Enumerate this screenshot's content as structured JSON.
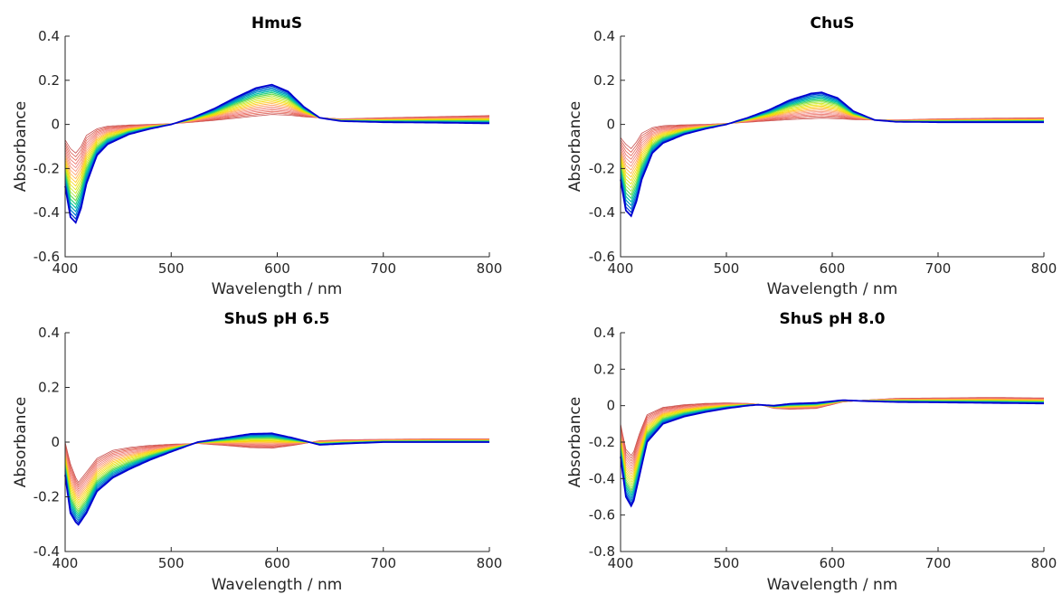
{
  "chart_data": [
    {
      "type": "line",
      "title": "HmuS",
      "xlabel": "Wavelength / nm",
      "ylabel": "Absorbance",
      "xlim": [
        400,
        800
      ],
      "ylim": [
        -0.6,
        0.4
      ],
      "xticks": [
        "400",
        "500",
        "600",
        "700",
        "800"
      ],
      "yticks": [
        "-0.6",
        "-0.4",
        "-0.2",
        "0",
        "0.2",
        "0.4"
      ],
      "ytick_values": [
        -0.6,
        -0.4,
        -0.2,
        0,
        0.2,
        0.4
      ],
      "grid": false,
      "first_spectrum": {
        "x": [
          400,
          405,
          410,
          415,
          420,
          430,
          440,
          460,
          480,
          500,
          520,
          540,
          560,
          580,
          595,
          610,
          625,
          640,
          660,
          700,
          750,
          800
        ],
        "y": [
          -0.07,
          -0.11,
          -0.13,
          -0.1,
          -0.05,
          -0.02,
          -0.008,
          -0.003,
          0,
          0.003,
          0.01,
          0.018,
          0.028,
          0.038,
          0.045,
          0.042,
          0.035,
          0.03,
          0.025,
          0.03,
          0.035,
          0.04
        ]
      },
      "last_spectrum": {
        "x": [
          400,
          405,
          410,
          415,
          420,
          430,
          440,
          460,
          480,
          500,
          520,
          540,
          560,
          580,
          595,
          610,
          625,
          640,
          660,
          700,
          750,
          800
        ],
        "y": [
          -0.28,
          -0.42,
          -0.445,
          -0.38,
          -0.27,
          -0.14,
          -0.09,
          -0.045,
          -0.02,
          0,
          0.03,
          0.07,
          0.12,
          0.165,
          0.18,
          0.15,
          0.08,
          0.03,
          0.015,
          0.01,
          0.008,
          0.005
        ]
      }
    },
    {
      "type": "line",
      "title": "ChuS",
      "xlabel": "Wavelength / nm",
      "ylabel": "Absorbance",
      "xlim": [
        400,
        800
      ],
      "ylim": [
        -0.6,
        0.4
      ],
      "xticks": [
        "400",
        "500",
        "600",
        "700",
        "800"
      ],
      "yticks": [
        "-0.6",
        "-0.4",
        "-0.2",
        "0",
        "0.2",
        "0.4"
      ],
      "ytick_values": [
        -0.6,
        -0.4,
        -0.2,
        0,
        0.2,
        0.4
      ],
      "grid": false,
      "first_spectrum": {
        "x": [
          400,
          405,
          410,
          415,
          420,
          430,
          440,
          460,
          480,
          500,
          520,
          540,
          560,
          580,
          590,
          605,
          620,
          640,
          660,
          700,
          750,
          800
        ],
        "y": [
          -0.06,
          -0.09,
          -0.11,
          -0.08,
          -0.04,
          -0.015,
          -0.006,
          -0.002,
          0,
          0.004,
          0.01,
          0.016,
          0.022,
          0.026,
          0.028,
          0.026,
          0.022,
          0.02,
          0.02,
          0.025,
          0.028,
          0.03
        ]
      },
      "last_spectrum": {
        "x": [
          400,
          405,
          410,
          415,
          420,
          430,
          440,
          460,
          480,
          500,
          520,
          540,
          560,
          580,
          590,
          605,
          620,
          640,
          660,
          700,
          750,
          800
        ],
        "y": [
          -0.25,
          -0.39,
          -0.415,
          -0.35,
          -0.25,
          -0.13,
          -0.085,
          -0.045,
          -0.02,
          0,
          0.03,
          0.065,
          0.11,
          0.14,
          0.145,
          0.12,
          0.06,
          0.02,
          0.012,
          0.01,
          0.01,
          0.01
        ]
      }
    },
    {
      "type": "line",
      "title": "ShuS pH 6.5",
      "xlabel": "Wavelength / nm",
      "ylabel": "Absorbance",
      "xlim": [
        400,
        800
      ],
      "ylim": [
        -0.4,
        0.4
      ],
      "xticks": [
        "400",
        "500",
        "600",
        "700",
        "800"
      ],
      "yticks": [
        "-0.4",
        "-0.2",
        "0",
        "0.2",
        "0.4"
      ],
      "ytick_values": [
        -0.4,
        -0.2,
        0,
        0.2,
        0.4
      ],
      "grid": false,
      "first_spectrum": {
        "x": [
          400,
          405,
          412,
          420,
          430,
          445,
          460,
          480,
          500,
          525,
          550,
          575,
          595,
          615,
          640,
          660,
          700,
          750,
          800
        ],
        "y": [
          0,
          -0.08,
          -0.15,
          -0.11,
          -0.06,
          -0.03,
          -0.02,
          -0.012,
          -0.008,
          -0.005,
          -0.012,
          -0.02,
          -0.022,
          -0.012,
          0.005,
          0.008,
          0.01,
          0.012,
          0.012
        ]
      },
      "last_spectrum": {
        "x": [
          400,
          405,
          412,
          420,
          430,
          445,
          460,
          480,
          500,
          525,
          550,
          575,
          595,
          615,
          640,
          660,
          700,
          750,
          800
        ],
        "y": [
          -0.12,
          -0.26,
          -0.305,
          -0.26,
          -0.18,
          -0.13,
          -0.1,
          -0.065,
          -0.035,
          0,
          0.015,
          0.03,
          0.032,
          0.015,
          -0.01,
          -0.006,
          0,
          0,
          0
        ]
      }
    },
    {
      "type": "line",
      "title": "ShuS pH 8.0",
      "xlabel": "Wavelength / nm",
      "ylabel": "Absorbance",
      "xlim": [
        400,
        800
      ],
      "ylim": [
        -0.8,
        0.4
      ],
      "xticks": [
        "400",
        "500",
        "600",
        "700",
        "800"
      ],
      "yticks": [
        "-0.8",
        "-0.6",
        "-0.4",
        "-0.2",
        "0",
        "0.2",
        "0.4"
      ],
      "ytick_values": [
        -0.8,
        -0.6,
        -0.4,
        -0.2,
        0,
        0.2,
        0.4
      ],
      "grid": false,
      "first_spectrum": {
        "x": [
          400,
          405,
          411,
          418,
          425,
          440,
          460,
          480,
          500,
          520,
          530,
          545,
          560,
          585,
          610,
          630,
          660,
          700,
          750,
          800
        ],
        "y": [
          -0.1,
          -0.24,
          -0.28,
          -0.15,
          -0.05,
          -0.01,
          0.005,
          0.012,
          0.015,
          0.012,
          0.008,
          -0.015,
          -0.02,
          -0.015,
          0.02,
          0.03,
          0.04,
          0.042,
          0.045,
          0.042
        ]
      },
      "last_spectrum": {
        "x": [
          400,
          405,
          411,
          418,
          425,
          440,
          460,
          480,
          500,
          520,
          530,
          545,
          560,
          585,
          610,
          630,
          660,
          700,
          750,
          800
        ],
        "y": [
          -0.28,
          -0.5,
          -0.56,
          -0.38,
          -0.2,
          -0.1,
          -0.06,
          -0.035,
          -0.015,
          0,
          0.005,
          0,
          0.01,
          0.015,
          0.03,
          0.025,
          0.02,
          0.018,
          0.015,
          0.012
        ]
      }
    }
  ],
  "series_count": 20,
  "colormap": [
    "#c85050",
    "#e86050",
    "#f08080",
    "#ffa060",
    "#ffd000",
    "#d8e800",
    "#80e040",
    "#00c8a0",
    "#0080d0",
    "#0000d0"
  ]
}
